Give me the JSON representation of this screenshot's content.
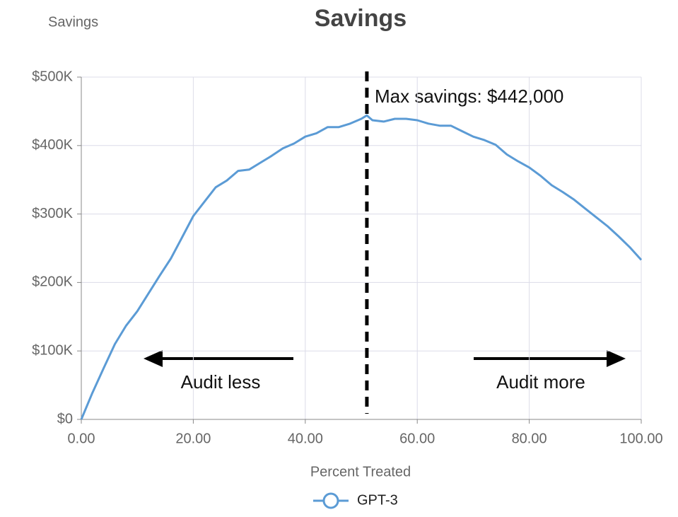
{
  "chart_data": {
    "type": "line",
    "title": "Savings",
    "subtitle": "Savings",
    "x_label": "Percent Treated",
    "x": [
      0,
      2,
      4,
      6,
      8,
      10,
      12,
      14,
      16,
      18,
      20,
      22,
      24,
      26,
      28,
      30,
      32,
      34,
      36,
      38,
      40,
      42,
      44,
      46,
      48,
      50,
      51,
      52,
      54,
      56,
      58,
      60,
      62,
      64,
      66,
      68,
      70,
      72,
      74,
      76,
      78,
      80,
      82,
      84,
      86,
      88,
      90,
      92,
      94,
      96,
      98,
      100
    ],
    "series": [
      {
        "name": "GPT-3",
        "color": "#5b9bd5",
        "values": [
          0,
          39000,
          75000,
          110000,
          137000,
          158000,
          184000,
          210000,
          235000,
          266000,
          297000,
          318000,
          339000,
          349000,
          363000,
          365000,
          375000,
          385000,
          396000,
          403000,
          413000,
          418000,
          427000,
          427000,
          432000,
          439000,
          444000,
          437000,
          435000,
          439000,
          439000,
          437000,
          432000,
          429000,
          429000,
          421000,
          413000,
          408000,
          401000,
          387000,
          377000,
          368000,
          356000,
          342000,
          332000,
          321000,
          308000,
          295000,
          282000,
          267000,
          251000,
          233000
        ]
      }
    ],
    "xlim": [
      0,
      100
    ],
    "xticks": [
      {
        "value": 0,
        "label": "0.00"
      },
      {
        "value": 20,
        "label": "20.00"
      },
      {
        "value": 40,
        "label": "40.00"
      },
      {
        "value": 60,
        "label": "60.00"
      },
      {
        "value": 80,
        "label": "80.00"
      },
      {
        "value": 100,
        "label": "100.00"
      }
    ],
    "ylim": [
      0,
      500000
    ],
    "yticks": [
      {
        "value": 0,
        "label": "$0"
      },
      {
        "value": 100000,
        "label": "$100K"
      },
      {
        "value": 200000,
        "label": "$200K"
      },
      {
        "value": 300000,
        "label": "$300K"
      },
      {
        "value": 400000,
        "label": "$400K"
      },
      {
        "value": 500000,
        "label": "$500K"
      }
    ],
    "grid": true,
    "vline_x": 51,
    "annotations": [
      "Max savings: $442,000",
      "Audit less",
      "Audit more"
    ]
  }
}
